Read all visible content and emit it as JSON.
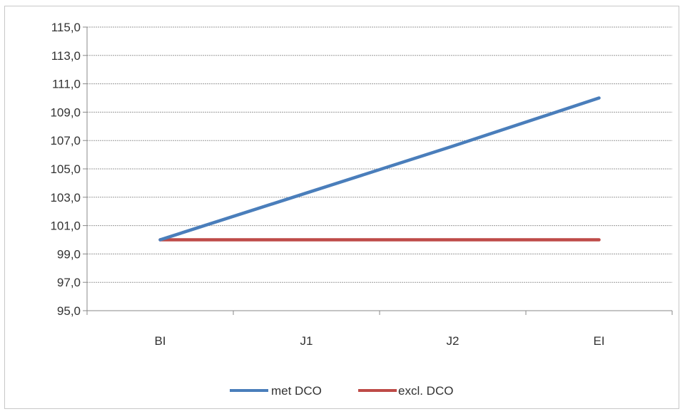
{
  "chart_data": {
    "type": "line",
    "categories": [
      "BI",
      "J1",
      "J2",
      "EI"
    ],
    "series": [
      {
        "name": "met DCO",
        "values": [
          100.0,
          103.3,
          106.6,
          110.0
        ],
        "color": "#4a7ebb"
      },
      {
        "name": "excl. DCO",
        "values": [
          100.0,
          100.0,
          100.0,
          100.0
        ],
        "color": "#be4b48"
      }
    ],
    "ylim": [
      95.0,
      115.0
    ],
    "yticks": [
      "95,0",
      "97,0",
      "99,0",
      "101,0",
      "103,0",
      "105,0",
      "107,0",
      "109,0",
      "111,0",
      "113,0",
      "115,0"
    ],
    "grid": true,
    "legend": "bottom"
  }
}
